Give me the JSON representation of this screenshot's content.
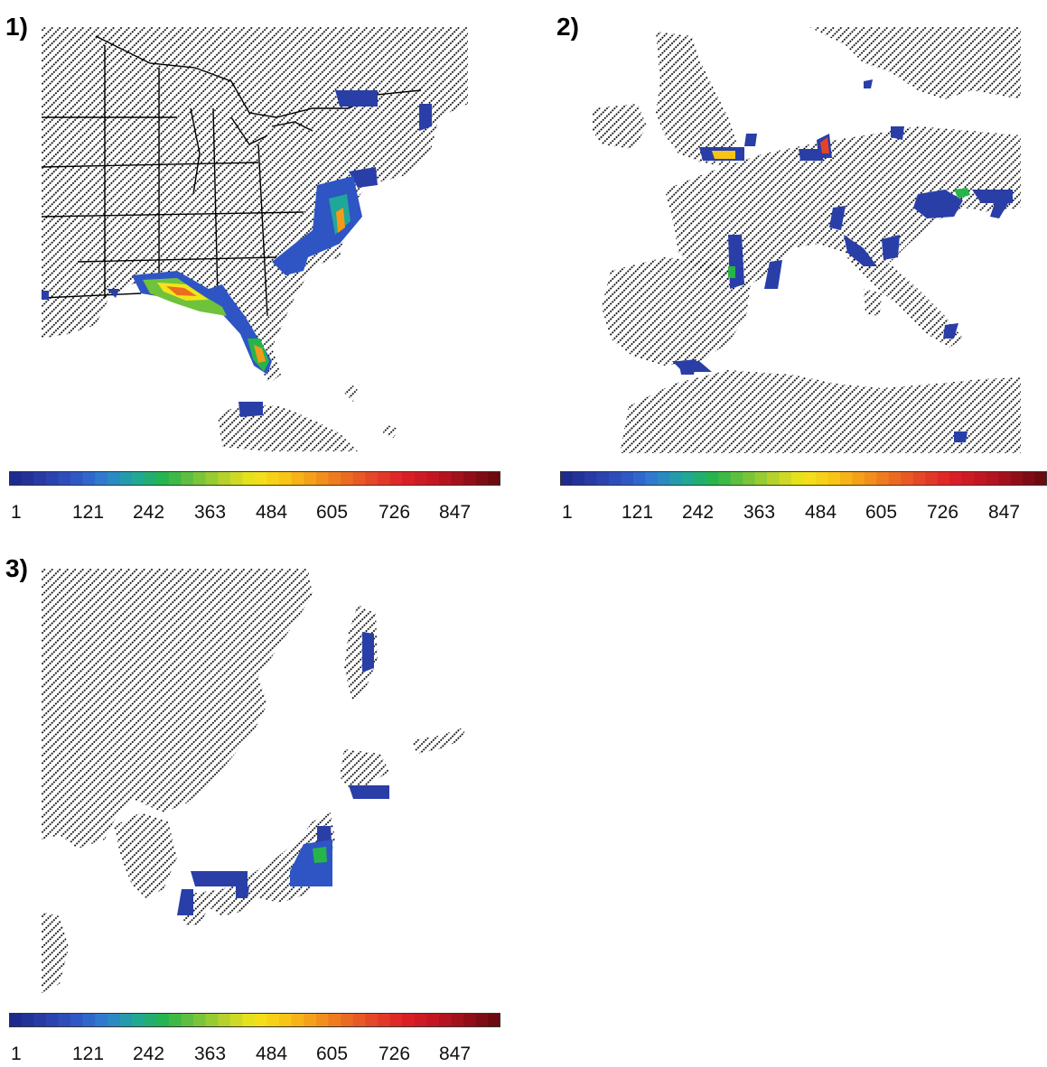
{
  "panels": [
    {
      "label": "1)",
      "region": "Eastern United States"
    },
    {
      "label": "2)",
      "region": "Western Europe"
    },
    {
      "label": "3)",
      "region": "East Asia / Japan"
    }
  ],
  "colorbar": {
    "ticks": [
      "1",
      "121",
      "242",
      "363",
      "484",
      "605",
      "726",
      "847"
    ],
    "colors": [
      "#1e2a8c",
      "#2a3ea8",
      "#2f55c4",
      "#2f7fd0",
      "#1fa79a",
      "#27b54a",
      "#6fc23b",
      "#b6d22b",
      "#f2e51a",
      "#f8c515",
      "#f39a1a",
      "#ec6d20",
      "#e4432a",
      "#dc1f26",
      "#c11722",
      "#9a0f19",
      "#6b0a10"
    ]
  },
  "hatch_color": "#000000"
}
